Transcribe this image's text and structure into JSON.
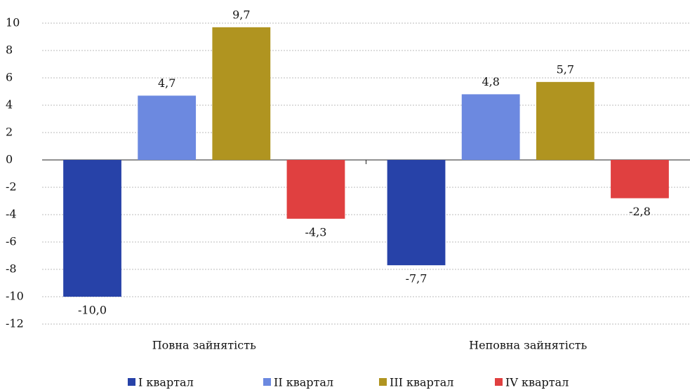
{
  "chart_data": {
    "type": "bar",
    "categories": [
      "Повна зайнятість",
      "Неповна зайнятість"
    ],
    "series": [
      {
        "name": "I квартал",
        "color": "#2742a8",
        "values": [
          -10.0,
          -7.7
        ],
        "value_labels": [
          "-10,0",
          "-7,7"
        ]
      },
      {
        "name": "II квартал",
        "color": "#6c89e0",
        "values": [
          4.7,
          4.8
        ],
        "value_labels": [
          "4,7",
          "4,8"
        ]
      },
      {
        "name": "III квартал",
        "color": "#b09420",
        "values": [
          9.7,
          5.7
        ],
        "value_labels": [
          "9,7",
          "5,7"
        ]
      },
      {
        "name": "IV квартал",
        "color": "#e04040",
        "values": [
          -4.3,
          -2.8
        ],
        "value_labels": [
          "-4,3",
          "-2,8"
        ]
      }
    ],
    "ylim": [
      -12,
      10
    ],
    "yticks": [
      -12,
      -10,
      -8,
      -6,
      -4,
      -2,
      0,
      2,
      4,
      6,
      8,
      10
    ],
    "grid": true,
    "legend": "bottom"
  }
}
